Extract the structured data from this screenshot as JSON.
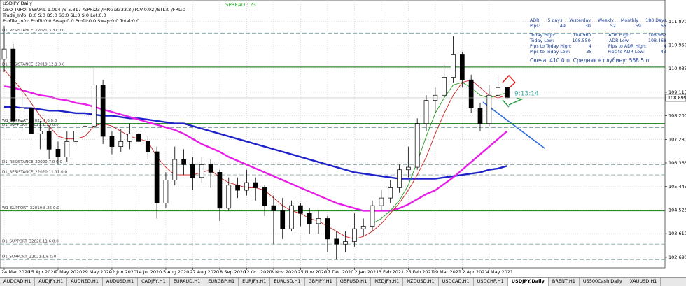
{
  "header": {
    "symbol": "USDJPY,Daily",
    "lines": [
      "GEO_INFO: SWAP:L-1.094 /S-5.817 /SPR:23 /MRG:3333.3 /TCV:0.92 /STL:0 /FRL:0",
      "Trade_Info: B:0 S:0 BS:0 SS:0 SL:0 S:0 Lot:0.0",
      "Profile_Info: Profit:0.0 Swap:0.0 Profit:0.0 Swap:0.0 Total:0.0"
    ],
    "spread": "SPREAD : 23"
  },
  "chart_data": {
    "type": "candlestick",
    "categories": [
      "24 Mar 2020",
      null,
      null,
      "15 Apr 2020",
      null,
      null,
      "7 May 2020",
      null,
      null,
      "29 May 2020",
      null,
      null,
      "22 Jun 2020",
      null,
      null,
      "14 Jul 2020",
      null,
      null,
      "5 Aug 2020",
      null,
      null,
      "27 Aug 2020",
      null,
      null,
      "18 Sep 2020",
      null,
      null,
      "12 Oct 2020",
      null,
      null,
      "3 Nov 2020",
      null,
      null,
      "25 Nov 2020",
      null,
      null,
      "17 Dec 2020",
      null,
      null,
      "12 Jan 2021",
      null,
      null,
      "3 Feb 2021",
      null,
      null,
      "25 Feb 2021",
      null,
      null,
      "19 Mar 2021",
      null,
      null,
      "12 Apr 2021",
      null,
      null,
      "4 May 2021",
      null,
      null
    ],
    "open": [
      110.4,
      110.8,
      108.0,
      108.5,
      107.5,
      107.6,
      106.9,
      106.6,
      107.2,
      107.6,
      107.8,
      109.4,
      107.4,
      107.0,
      107.2,
      107.5,
      107.2,
      106.8,
      104.8,
      105.7,
      106.5,
      106.3,
      105.8,
      106.3,
      106.0,
      104.6,
      105.5,
      105.3,
      105.6,
      105.4,
      104.7,
      104.5,
      103.8,
      104.7,
      104.4,
      104.0,
      104.2,
      103.4,
      103.2,
      103.3,
      103.8,
      103.9,
      104.7,
      105.0,
      105.4,
      106.1,
      106.2,
      107.9,
      108.8,
      109.0,
      109.7,
      110.6,
      109.6,
      108.5,
      107.9,
      109.0,
      109.3
    ],
    "high": [
      111.7,
      111.0,
      109.2,
      108.9,
      108.0,
      107.8,
      107.2,
      107.6,
      108.0,
      108.2,
      110.1,
      109.6,
      107.6,
      107.7,
      107.9,
      107.8,
      107.4,
      107.0,
      106.0,
      107.0,
      106.9,
      106.6,
      106.6,
      106.5,
      106.1,
      105.8,
      105.8,
      106.1,
      105.8,
      105.5,
      105.1,
      105.0,
      104.9,
      104.8,
      104.6,
      104.5,
      104.3,
      103.7,
      103.7,
      104.4,
      104.2,
      104.9,
      105.3,
      105.7,
      106.3,
      107.0,
      108.1,
      109.0,
      109.3,
      110.2,
      111.3,
      110.7,
      109.8,
      108.7,
      109.4,
      109.8,
      109.5
    ],
    "low": [
      109.9,
      107.8,
      107.6,
      107.2,
      106.9,
      106.5,
      106.3,
      106.4,
      107.0,
      107.2,
      107.7,
      107.1,
      106.7,
      106.8,
      106.9,
      106.8,
      106.5,
      104.2,
      104.6,
      105.5,
      105.9,
      105.3,
      105.6,
      105.4,
      104.1,
      104.5,
      105.0,
      105.1,
      104.9,
      104.3,
      103.2,
      103.4,
      103.7,
      103.9,
      103.6,
      103.6,
      102.9,
      102.6,
      102.9,
      103.1,
      103.5,
      103.7,
      104.5,
      104.8,
      105.2,
      105.8,
      106.1,
      107.6,
      108.3,
      108.9,
      109.5,
      109.3,
      108.3,
      107.6,
      107.8,
      108.8,
      108.6
    ],
    "close": [
      110.8,
      108.0,
      108.5,
      107.5,
      107.6,
      106.9,
      106.6,
      107.2,
      107.6,
      107.8,
      109.4,
      107.4,
      107.0,
      107.2,
      107.5,
      107.2,
      106.8,
      104.8,
      105.7,
      106.5,
      106.3,
      105.8,
      106.3,
      106.0,
      104.6,
      105.5,
      105.3,
      105.6,
      105.4,
      104.7,
      104.5,
      103.8,
      104.7,
      104.4,
      104.0,
      104.2,
      103.4,
      103.2,
      103.3,
      103.8,
      103.9,
      104.7,
      105.0,
      105.4,
      106.1,
      106.2,
      107.9,
      108.8,
      109.0,
      109.7,
      110.6,
      109.6,
      108.5,
      107.9,
      109.0,
      109.3,
      108.9
    ],
    "series": [
      {
        "color": "#1e22c8",
        "values": [
          108.55,
          108.55,
          108.5,
          108.5,
          108.45,
          108.4,
          108.4,
          108.35,
          108.3,
          108.3,
          108.25,
          108.2,
          108.2,
          108.15,
          108.1,
          108.1,
          108.05,
          108.0,
          107.95,
          107.9,
          107.9,
          107.8,
          107.7,
          107.6,
          107.5,
          107.4,
          107.3,
          107.2,
          107.1,
          107.0,
          106.9,
          106.8,
          106.7,
          106.6,
          106.5,
          106.4,
          106.3,
          106.2,
          106.1,
          106.0,
          105.95,
          105.9,
          105.85,
          105.8,
          105.75,
          105.75,
          105.75,
          105.75,
          105.75,
          105.8,
          105.85,
          105.9,
          105.95,
          106.0,
          106.1,
          106.15,
          106.25
        ]
      },
      {
        "color": "#e61ee6",
        "values": [
          109.35,
          109.3,
          109.2,
          109.1,
          109.0,
          108.95,
          108.85,
          108.8,
          108.7,
          108.65,
          108.55,
          108.45,
          108.35,
          108.25,
          108.15,
          108.05,
          107.95,
          107.85,
          107.75,
          107.65,
          107.5,
          107.3,
          107.1,
          106.95,
          106.8,
          106.6,
          106.45,
          106.3,
          106.15,
          106.0,
          105.85,
          105.7,
          105.55,
          105.4,
          105.25,
          105.1,
          104.95,
          104.8,
          104.7,
          104.6,
          104.5,
          104.5,
          104.5,
          104.5,
          104.6,
          104.75,
          104.95,
          105.15,
          105.3,
          105.55,
          105.8,
          106.1,
          106.4,
          106.7,
          107.0,
          107.3,
          107.6
        ]
      },
      {
        "color": "#c81e1e",
        "values": [
          110.0,
          109.6,
          109.2,
          108.7,
          108.2,
          107.8,
          107.4,
          107.3,
          107.3,
          107.4,
          107.8,
          107.9,
          107.8,
          107.6,
          107.4,
          107.3,
          107.2,
          106.6,
          106.2,
          105.9,
          105.9,
          105.9,
          106.0,
          106.1,
          105.8,
          105.6,
          105.5,
          105.4,
          105.4,
          105.3,
          105.0,
          104.7,
          104.5,
          104.4,
          104.2,
          104.1,
          103.9,
          103.7,
          103.5,
          103.4,
          103.5,
          103.7,
          104.0,
          104.4,
          104.8,
          105.3,
          105.9,
          106.6,
          107.5,
          108.3,
          109.0,
          109.5,
          109.6,
          109.3,
          109.0,
          108.9,
          109.0
        ]
      },
      {
        "color": "#1e9b1e",
        "values": [
          null,
          null,
          null,
          null,
          null,
          null,
          null,
          null,
          null,
          null,
          null,
          null,
          null,
          null,
          null,
          null,
          null,
          null,
          null,
          null,
          null,
          null,
          null,
          null,
          null,
          null,
          null,
          null,
          null,
          null,
          null,
          null,
          null,
          null,
          null,
          null,
          null,
          null,
          null,
          null,
          null,
          104.0,
          104.2,
          104.5,
          104.9,
          105.5,
          106.4,
          107.4,
          108.3,
          108.9,
          109.4,
          109.5,
          109.3,
          109.0,
          108.9,
          109.0,
          109.1
        ]
      }
    ],
    "levels": [
      {
        "label": "D1_RESISTANCE_12021:3.31 0:0",
        "value": 111.42,
        "color": "#8aa",
        "solid": false
      },
      {
        "label": "D1_RESISTANCE_22019:12.1 0:0",
        "value": 110.1,
        "color": "#2e8b2e",
        "solid": true
      },
      {
        "label": "W1_SUPPORT_12021:1.6 0:0",
        "value": 107.9,
        "color": "#2e8b2e",
        "solid": true
      },
      {
        "label": "D1_SUPPORT_22021:1.13 0:0",
        "value": 107.74,
        "color": "#8aa",
        "solid": false
      },
      {
        "label": "D1_RESISTANCE_22020:7.0 0:0",
        "value": 106.3,
        "color": "#8aa",
        "solid": false
      },
      {
        "label": "D1_RESISTANCE_22020:11.11 0:0",
        "value": 105.9,
        "color": "#8aa",
        "solid": false
      },
      {
        "label": "W1_SUPPORT_32019:8.25 0:0",
        "value": 104.5,
        "color": "#2e8b2e",
        "solid": true
      },
      {
        "label": "D1_SUPPORT_32020:11.6 0:0",
        "value": 103.2,
        "color": "#8aa",
        "solid": false
      },
      {
        "label": "D1_SUPPORT_22021:1.6 0:0",
        "value": 102.6,
        "color": "#8aa",
        "solid": false
      }
    ],
    "ylim": [
      102.28,
      112.71
    ],
    "yticks": [
      {
        "value": 111.87,
        "label": "111.870"
      },
      {
        "value": 110.95,
        "label": "110.950"
      },
      110.035,
      109.115,
      {
        "value": 108.2,
        "label": "108.200"
      },
      {
        "value": 107.28,
        "label": "107.280"
      },
      106.365,
      105.445,
      104.525,
      {
        "value": 103.61,
        "label": "103.610"
      },
      {
        "value": 102.69,
        "label": "102.690"
      }
    ],
    "current": {
      "value": 108.899,
      "label": "108.899"
    },
    "timer": "9:13:14",
    "grid": true
  },
  "info_panel": {
    "header": [
      "ADR:",
      "5 days",
      "Yesterday",
      "Weekly",
      "Monthly",
      "180 Days"
    ],
    "pips": [
      "Pips:",
      "49",
      "30",
      "52",
      "59",
      "55"
    ],
    "rows": [
      [
        "Today High:",
        "108.960",
        "ADR High:",
        "108.962"
      ],
      [
        "Today Low:",
        "108.550",
        "ADR Low:",
        "108.468"
      ],
      [
        "Pips to Today High:",
        "4",
        "Pips to ADR High:",
        "4"
      ],
      [
        "Pips to Today Low:",
        "35",
        "Pips to ADR Low:",
        "43"
      ]
    ],
    "candle": "Свеча: 410.0 п. Средняя в глубину: 568.5 п."
  },
  "tabs": [
    "AUDCAD,H1",
    "AUDJPY,H1",
    "AUDNZD,H1",
    "AUDUSD,H1",
    "CADJPY,H1",
    "EURAUD,H1",
    "EURGBP,H1",
    "EURJPY,H1",
    "EURUSD,H1",
    "GBPJPY,H1",
    "GBPUSD,H1",
    "NZDJPY,H1",
    "NZDUSD,H1",
    "USDCAD,H1",
    "USDCHF,H1",
    "USDJPY,Daily",
    "BRENT,H1",
    "US500Cash,Daily",
    "XAUUSD,H1"
  ],
  "active_tab": 15
}
